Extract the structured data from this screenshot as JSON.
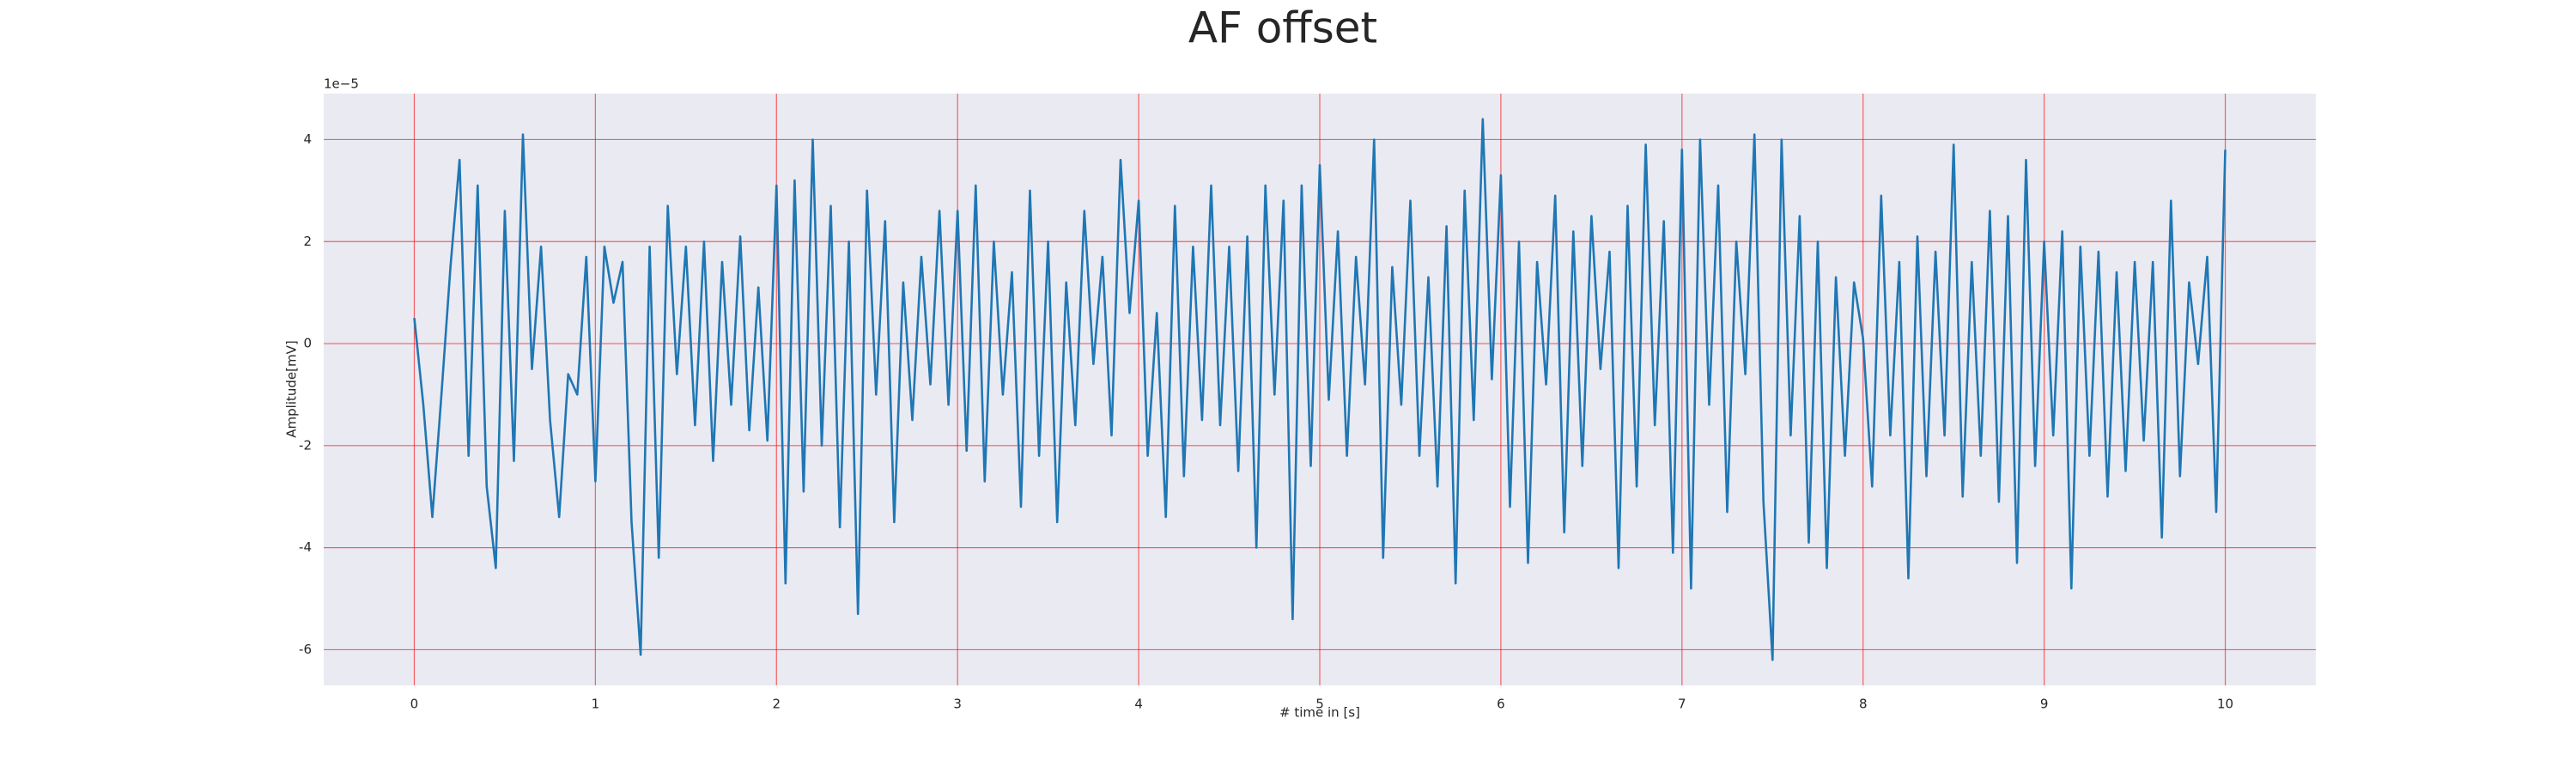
{
  "chart_data": {
    "type": "line",
    "title": "AF offset",
    "xlabel": "# time in [s]",
    "ylabel": "Amplitude[mV]",
    "offset_label": "1e−5",
    "x": [
      0,
      0.05,
      0.1,
      0.15,
      0.2,
      0.25,
      0.3,
      0.35,
      0.4,
      0.45,
      0.5,
      0.55,
      0.6,
      0.65,
      0.7,
      0.75,
      0.8,
      0.85,
      0.9,
      0.95,
      1,
      1.05,
      1.1,
      1.15,
      1.2,
      1.25,
      1.3,
      1.35,
      1.4,
      1.45,
      1.5,
      1.55,
      1.6,
      1.65,
      1.7,
      1.75,
      1.8,
      1.85,
      1.9,
      1.95,
      2,
      2.05,
      2.1,
      2.15,
      2.2,
      2.25,
      2.3,
      2.35,
      2.4,
      2.45,
      2.5,
      2.55,
      2.6,
      2.65,
      2.7,
      2.75,
      2.8,
      2.85,
      2.9,
      2.95,
      3,
      3.05,
      3.1,
      3.15,
      3.2,
      3.25,
      3.3,
      3.35,
      3.4,
      3.45,
      3.5,
      3.55,
      3.6,
      3.65,
      3.7,
      3.75,
      3.8,
      3.85,
      3.9,
      3.95,
      4,
      4.05,
      4.1,
      4.15,
      4.2,
      4.25,
      4.3,
      4.35,
      4.4,
      4.45,
      4.5,
      4.55,
      4.6,
      4.65,
      4.7,
      4.75,
      4.8,
      4.85,
      4.9,
      4.95,
      5,
      5.05,
      5.1,
      5.15,
      5.2,
      5.25,
      5.3,
      5.35,
      5.4,
      5.45,
      5.5,
      5.55,
      5.6,
      5.65,
      5.7,
      5.75,
      5.8,
      5.85,
      5.9,
      5.95,
      6,
      6.05,
      6.1,
      6.15,
      6.2,
      6.25,
      6.3,
      6.35,
      6.4,
      6.45,
      6.5,
      6.55,
      6.6,
      6.65,
      6.7,
      6.75,
      6.8,
      6.85,
      6.9,
      6.95,
      7,
      7.05,
      7.1,
      7.15,
      7.2,
      7.25,
      7.3,
      7.35,
      7.4,
      7.45,
      7.5,
      7.55,
      7.6,
      7.65,
      7.7,
      7.75,
      7.8,
      7.85,
      7.9,
      7.95,
      8,
      8.05,
      8.1,
      8.15,
      8.2,
      8.25,
      8.3,
      8.35,
      8.4,
      8.45,
      8.5,
      8.55,
      8.6,
      8.65,
      8.7,
      8.75,
      8.8,
      8.85,
      8.9,
      8.95,
      9,
      9.05,
      9.1,
      9.15,
      9.2,
      9.25,
      9.3,
      9.35,
      9.4,
      9.45,
      9.5,
      9.55,
      9.6,
      9.65,
      9.7,
      9.75,
      9.8,
      9.85,
      9.9,
      9.95,
      10
    ],
    "values": [
      0.5,
      -1.2,
      -3.4,
      -1.0,
      1.5,
      3.6,
      -2.2,
      3.1,
      -2.8,
      -4.4,
      2.6,
      -2.3,
      4.1,
      -0.5,
      1.9,
      -1.5,
      -3.4,
      -0.6,
      -1.0,
      1.7,
      -2.7,
      1.9,
      0.8,
      1.6,
      -3.5,
      -6.1,
      1.9,
      -4.2,
      2.7,
      -0.6,
      1.9,
      -1.6,
      2.0,
      -2.3,
      1.6,
      -1.2,
      2.1,
      -1.7,
      1.1,
      -1.9,
      3.1,
      -4.7,
      3.2,
      -2.9,
      4.0,
      -2.0,
      2.7,
      -3.6,
      2.0,
      -5.3,
      3.0,
      -1.0,
      2.4,
      -3.5,
      1.2,
      -1.5,
      1.7,
      -0.8,
      2.6,
      -1.2,
      2.6,
      -2.1,
      3.1,
      -2.7,
      2.0,
      -1.0,
      1.4,
      -3.2,
      3.0,
      -2.2,
      2.0,
      -3.5,
      1.2,
      -1.6,
      2.6,
      -0.4,
      1.7,
      -1.8,
      3.6,
      0.6,
      2.8,
      -2.2,
      0.6,
      -3.4,
      2.7,
      -2.6,
      1.9,
      -1.5,
      3.1,
      -1.6,
      1.9,
      -2.5,
      2.1,
      -4.0,
      3.1,
      -1.0,
      2.8,
      -5.4,
      3.1,
      -2.4,
      3.5,
      -1.1,
      2.2,
      -2.2,
      1.7,
      -0.8,
      4.0,
      -4.2,
      1.5,
      -1.2,
      2.8,
      -2.2,
      1.3,
      -2.8,
      2.3,
      -4.7,
      3.0,
      -1.5,
      4.4,
      -0.7,
      3.3,
      -3.2,
      2.0,
      -4.3,
      1.6,
      -0.8,
      2.9,
      -3.7,
      2.2,
      -2.4,
      2.5,
      -0.5,
      1.8,
      -4.4,
      2.7,
      -2.8,
      3.9,
      -1.6,
      2.4,
      -4.1,
      3.8,
      -4.8,
      4.0,
      -1.2,
      3.1,
      -3.3,
      2.0,
      -0.6,
      4.1,
      -3.1,
      -6.2,
      4.0,
      -1.8,
      2.5,
      -3.9,
      2.0,
      -4.4,
      1.3,
      -2.2,
      1.2,
      0.1,
      -2.8,
      2.9,
      -1.8,
      1.6,
      -4.6,
      2.1,
      -2.6,
      1.8,
      -1.8,
      3.9,
      -3.0,
      1.6,
      -2.2,
      2.6,
      -3.1,
      2.5,
      -4.3,
      3.6,
      -2.4,
      2.0,
      -1.8,
      2.2,
      -4.8,
      1.9,
      -2.2,
      1.8,
      -3.0,
      1.4,
      -2.5,
      1.6,
      -1.9,
      1.6,
      -3.8,
      2.8,
      -2.6,
      1.2,
      -0.4,
      1.7,
      -3.3,
      3.8
    ],
    "color": "#1f77b4",
    "xlim": [
      -0.5,
      10.5
    ],
    "ylim": [
      -6.7,
      4.9
    ],
    "xticks": [
      0,
      1,
      2,
      3,
      4,
      5,
      6,
      7,
      8,
      9,
      10
    ],
    "yticks": [
      -6,
      -4,
      -2,
      0,
      2,
      4
    ],
    "grid": true
  }
}
